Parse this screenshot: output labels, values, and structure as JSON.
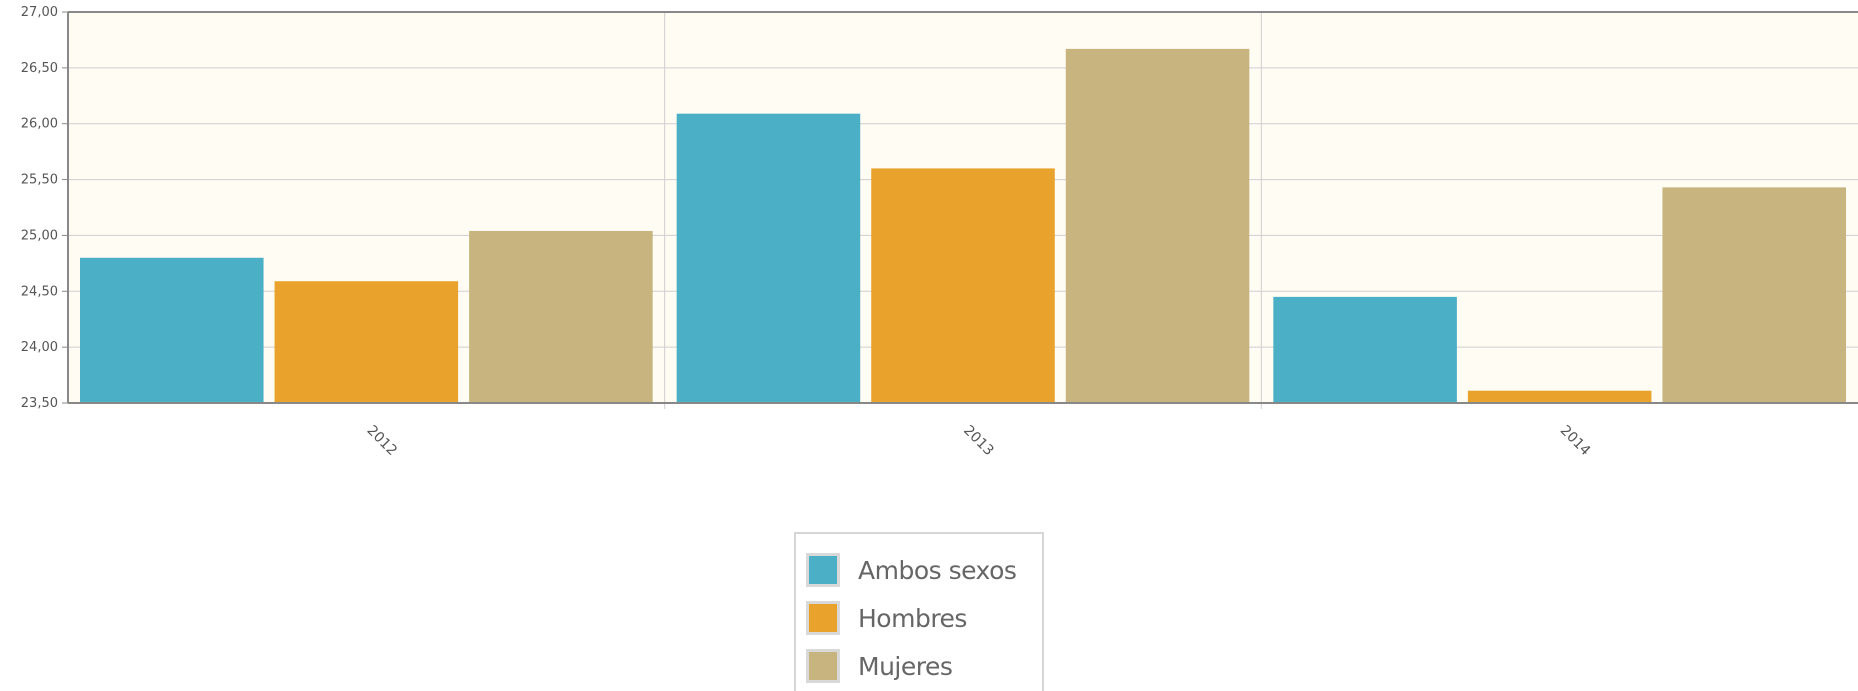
{
  "chart_data": {
    "type": "bar",
    "categories": [
      "2012",
      "2013",
      "2014"
    ],
    "series": [
      {
        "name": "Ambos sexos",
        "color": "#4bb0c5",
        "values": [
          24.8,
          26.09,
          24.45
        ]
      },
      {
        "name": "Hombres",
        "color": "#e9a22b",
        "values": [
          24.59,
          25.6,
          23.61
        ]
      },
      {
        "name": "Mujeres",
        "color": "#c7b47f",
        "values": [
          25.04,
          26.67,
          25.43
        ]
      }
    ],
    "yticks": [
      "23,50",
      "24,00",
      "24,50",
      "25,00",
      "25,50",
      "26,00",
      "26,50",
      "27,00"
    ],
    "ylim": [
      23.5,
      27.0
    ],
    "grid": true,
    "legend_position": "bottom-center",
    "plot_background": "#fffcf4"
  },
  "legend": {
    "items": [
      {
        "label": "Ambos sexos",
        "color": "#4bb0c5"
      },
      {
        "label": "Hombres",
        "color": "#e9a22b"
      },
      {
        "label": "Mujeres",
        "color": "#c7b47f"
      }
    ]
  }
}
